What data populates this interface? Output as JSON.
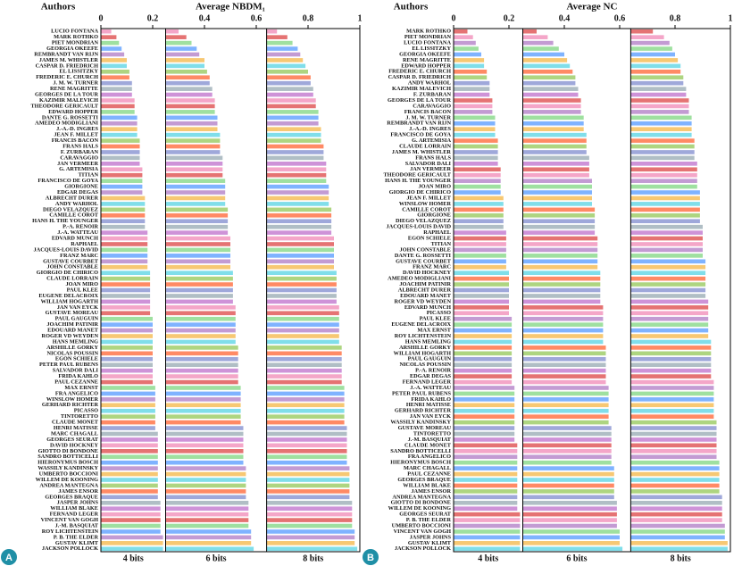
{
  "chart_data": [
    {
      "type": "bar",
      "panel_label": "A",
      "authors_label": "Authors",
      "title": "Average NBDM₁",
      "xlim": [
        0,
        1
      ],
      "xticks": [
        0,
        0.2,
        0.4,
        0.6,
        0.8,
        1
      ],
      "palette": [
        "#f4a6c8",
        "#e57373",
        "#9fe0a0",
        "#7fb3ff",
        "#c39bd3",
        "#f7c873",
        "#80deea",
        "#aed581",
        "#ff8a65",
        "#9fa8da",
        "#b0bec5",
        "#ce93d8"
      ],
      "categories": [
        "LUCIO FONTANA",
        "MARK ROTHKO",
        "PIET MONDRIAN",
        "GEORGIA OKEEFE",
        "REMBRANDT VAN RIJN",
        "JAMES M. WHISTLER",
        "CASPAR D. FRIEDRICH",
        "EL LISSITZKY",
        "FREDERIC E. CHURCH",
        "J. M. W. TURNER",
        "RENE MAGRITTE",
        "GEORGES DE LA TOUR",
        "KAZIMIR MALEVICH",
        "THEODORE GERICAULT",
        "EDWARD HOPPER",
        "DANTE G. ROSSETTI",
        "AMEDEO MODIGLIANI",
        "J.-A.-D. INGRES",
        "JEAN F. MILLET",
        "FRANCIS BACON",
        "FRANS HALS",
        "F. ZURBARAN",
        "CARAVAGGIO",
        "JAN VERMEER",
        "G. ARTEMISIA",
        "TITIAN",
        "FRANCISCO DE GOYA",
        "GIORGIONE",
        "EDGAR DEGAS",
        "ALBRECHT DURER",
        "ANDY WARHOL",
        "DIEGO VELAZQUEZ",
        "CAMILLE COROT",
        "HANS H. THE YOUNGER",
        "P.-A. RENOIR",
        "J.-A. WATTEAU",
        "EDVARD MUNCH",
        "RAPHAEL",
        "JACQUES-LOUIS DAVID",
        "FRANZ MARC",
        "GUSTAVE COURBET",
        "JOHN CONSTABLE",
        "GIORGIO DE CHIRICO",
        "CLAUDE LORRAIN",
        "JOAN MIRO",
        "PAUL KLEE",
        "EUGENE DELACROIX",
        "WILLIAM HOGARTH",
        "JAN VAN EYCK",
        "GUSTAVE MOREAU",
        "PAUL GAUGUIN",
        "JOACHIM PATINIR",
        "EDOUARD MANET",
        "ROGER VD WEYDEN",
        "HANS MEMLING",
        "ARSHILLE GORKY",
        "NICOLAS POUSSIN",
        "EGON SCHIELE",
        "PETER PAUL RUBENS",
        "SALVADOR DALI",
        "FRIDA KAHLO",
        "PAUL CEZANNE",
        "MAX ERNST",
        "FRA ANGELICO",
        "WINSLOW HOMER",
        "GERHARD RICHTER",
        "PICASSO",
        "TINTORETTO",
        "CLAUDE MONET",
        "HENRI MATISSE",
        "MARC CHAGALL",
        "GEORGES SEURAT",
        "DAVID HOCKNEY",
        "GIOTTO DI BONDONE",
        "SANDRO BOTTICELLI",
        "HIERONYMUS BOSCH",
        "WASSILY KANDINSKY",
        "UMBERTO BOCCIONI",
        "WILLEM DE KOONING",
        "ANDREA MANTEGNA",
        "JAMES ENSOR",
        "GEORGES BRAQUE",
        "JASPER JOHNS",
        "WILLIAM BLAKE",
        "FERNAND LEGER",
        "VINCENT VAN GOGH",
        "J.-M. BASQUIAT",
        "ROY LICHTENSTEIN",
        "P. B. THE ELDER",
        "GUSTAV KLIMT",
        "JACKSON POLLOCK"
      ],
      "series": [
        {
          "name": "4 bits",
          "values": [
            0.04,
            0.06,
            0.07,
            0.08,
            0.09,
            0.1,
            0.1,
            0.11,
            0.11,
            0.12,
            0.12,
            0.12,
            0.13,
            0.13,
            0.13,
            0.14,
            0.14,
            0.14,
            0.14,
            0.15,
            0.15,
            0.15,
            0.15,
            0.15,
            0.16,
            0.16,
            0.16,
            0.16,
            0.16,
            0.17,
            0.17,
            0.17,
            0.17,
            0.17,
            0.17,
            0.18,
            0.18,
            0.18,
            0.18,
            0.18,
            0.18,
            0.18,
            0.19,
            0.19,
            0.19,
            0.19,
            0.19,
            0.19,
            0.19,
            0.19,
            0.2,
            0.2,
            0.2,
            0.2,
            0.2,
            0.2,
            0.2,
            0.2,
            0.2,
            0.2,
            0.2,
            0.2,
            0.21,
            0.21,
            0.21,
            0.21,
            0.21,
            0.21,
            0.21,
            0.21,
            0.22,
            0.22,
            0.22,
            0.22,
            0.22,
            0.22,
            0.22,
            0.22,
            0.22,
            0.22,
            0.22,
            0.22,
            0.23,
            0.23,
            0.23,
            0.23,
            0.23,
            0.23,
            0.24,
            0.24,
            0.24
          ]
        },
        {
          "name": "6 bits",
          "values": [
            0.3,
            0.33,
            0.35,
            0.37,
            0.38,
            0.4,
            0.4,
            0.41,
            0.42,
            0.42,
            0.43,
            0.43,
            0.44,
            0.44,
            0.44,
            0.45,
            0.45,
            0.45,
            0.46,
            0.46,
            0.46,
            0.46,
            0.47,
            0.47,
            0.47,
            0.47,
            0.48,
            0.48,
            0.48,
            0.48,
            0.48,
            0.49,
            0.49,
            0.49,
            0.49,
            0.49,
            0.5,
            0.5,
            0.5,
            0.5,
            0.5,
            0.5,
            0.51,
            0.51,
            0.51,
            0.51,
            0.51,
            0.51,
            0.52,
            0.52,
            0.52,
            0.52,
            0.52,
            0.52,
            0.52,
            0.53,
            0.53,
            0.53,
            0.53,
            0.53,
            0.53,
            0.53,
            0.54,
            0.54,
            0.54,
            0.54,
            0.54,
            0.54,
            0.54,
            0.55,
            0.55,
            0.55,
            0.55,
            0.55,
            0.55,
            0.55,
            0.56,
            0.56,
            0.56,
            0.56,
            0.56,
            0.56,
            0.57,
            0.57,
            0.57,
            0.57,
            0.57,
            0.58,
            0.58,
            0.58,
            0.59
          ]
        },
        {
          "name": "8 bits",
          "values": [
            0.68,
            0.72,
            0.74,
            0.76,
            0.77,
            0.78,
            0.79,
            0.8,
            0.81,
            0.81,
            0.82,
            0.82,
            0.83,
            0.83,
            0.84,
            0.84,
            0.84,
            0.85,
            0.85,
            0.85,
            0.86,
            0.86,
            0.86,
            0.87,
            0.87,
            0.87,
            0.87,
            0.88,
            0.88,
            0.88,
            0.88,
            0.89,
            0.89,
            0.89,
            0.89,
            0.89,
            0.9,
            0.9,
            0.9,
            0.9,
            0.9,
            0.9,
            0.91,
            0.91,
            0.91,
            0.91,
            0.91,
            0.91,
            0.92,
            0.92,
            0.92,
            0.92,
            0.92,
            0.92,
            0.92,
            0.93,
            0.93,
            0.93,
            0.93,
            0.93,
            0.93,
            0.93,
            0.94,
            0.94,
            0.94,
            0.94,
            0.94,
            0.94,
            0.94,
            0.95,
            0.95,
            0.95,
            0.95,
            0.95,
            0.95,
            0.95,
            0.96,
            0.96,
            0.96,
            0.96,
            0.96,
            0.96,
            0.97,
            0.97,
            0.97,
            0.97,
            0.97,
            0.98,
            0.98,
            0.98,
            0.99
          ]
        }
      ]
    },
    {
      "type": "bar",
      "panel_label": "B",
      "authors_label": "Authors",
      "title": "Average NC",
      "xlim": [
        0,
        1
      ],
      "xticks": [
        0,
        0.2,
        0.4,
        0.6,
        0.8,
        1
      ],
      "palette": [
        "#e57373",
        "#f4a6c8",
        "#c39bd3",
        "#9fe0a0",
        "#7fb3ff",
        "#f7c873",
        "#80deea",
        "#ff8a65",
        "#aed581",
        "#9fa8da",
        "#b0bec5",
        "#ce93d8"
      ],
      "categories": [
        "MARK ROTHKO",
        "PIET MONDRIAN",
        "LUCIO FONTANA",
        "EL LISSITZKY",
        "GEORGIA OKEEFE",
        "RENE MAGRITTE",
        "EDWARD HOPPER",
        "FREDERIC E. CHURCH",
        "CASPAR D. FRIEDRICH",
        "ANDY WARHOL",
        "KAZIMIR MALEVICH",
        "F. ZURBARAN",
        "GEORGES DE LA TOUR",
        "CARAVAGGIO",
        "FRANCIS BACON",
        "J. M. W. TURNER",
        "REMBRANDT VAN RIJN",
        "J.-A.-D. INGRES",
        "FRANCISCO DE GOYA",
        "G. ARTEMISIA",
        "CLAUDE LORRAIN",
        "JAMES M. WHISTLER",
        "FRANS HALS",
        "SALVADOR DALI",
        "JAN VERMEER",
        "THEODORE GERICAULT",
        "HANS H. THE YOUNGER",
        "JOAN MIRO",
        "GIORGIO DE CHIRICO",
        "JEAN F. MILLET",
        "WINSLOW HOMER",
        "CAMILLE COROT",
        "GIORGIONE",
        "DIEGO VELAZQUEZ",
        "JACQUES-LOUIS DAVID",
        "RAPHAEL",
        "EGON SCHIELE",
        "TITIAN",
        "JOHN CONSTABLE",
        "DANTE G. ROSSETTI",
        "GUSTAVE COURBET",
        "FRANZ MARC",
        "DAVID HOCKNEY",
        "AMEDEO MODIGLIANI",
        "JOACHIM PATINIR",
        "ALBRECHT DURER",
        "EDOUARD MANET",
        "ROGER VD WEYDEN",
        "EDVARD MUNCH",
        "PICASSO",
        "PAUL KLEE",
        "EUGENE DELACROIX",
        "MAX ERNST",
        "ROY LICHTENSTEIN",
        "HANS MEMLING",
        "ARSHILLE GORKY",
        "WILLIAM HOGARTH",
        "PAUL GAUGUIN",
        "NICOLAS POUSSIN",
        "P.-A. RENOIR",
        "EDGAR DEGAS",
        "FERNAND LEGER",
        "J.-A. WATTEAU",
        "PETER PAUL RUBENS",
        "FRIDA KAHLO",
        "HENRI MATISSE",
        "GERHARD RICHTER",
        "JAN VAN EYCK",
        "WASSILY KANDINSKY",
        "GUSTAVE MOREAU",
        "TINTORETTO",
        "J.-M. BASQUIAT",
        "CLAUDE MONET",
        "SANDRO BOTTICELLI",
        "FRA ANGELICO",
        "HIERONYMUS BOSCH",
        "MARC CHAGALL",
        "PAUL CEZANNE",
        "GEORGES BRAQUE",
        "WILLIAM BLAKE",
        "JAMES ENSOR",
        "ANDREA MANTEGNA",
        "GIOTTO DI BONDONE",
        "WILLEM DE KOONING",
        "GEORGES SEURAT",
        "P. B. THE ELDER",
        "UMBERTO BOCCIONI",
        "VINCENT VAN GOGH",
        "JASPER JOHNS",
        "GUSTAV KLIMT",
        "JACKSON POLLOCK"
      ],
      "series": [
        {
          "name": "4 bits",
          "values": [
            0.05,
            0.07,
            0.08,
            0.09,
            0.1,
            0.11,
            0.11,
            0.12,
            0.12,
            0.13,
            0.13,
            0.13,
            0.14,
            0.14,
            0.14,
            0.15,
            0.15,
            0.15,
            0.15,
            0.16,
            0.16,
            0.16,
            0.16,
            0.16,
            0.17,
            0.17,
            0.17,
            0.17,
            0.17,
            0.18,
            0.18,
            0.18,
            0.18,
            0.18,
            0.18,
            0.19,
            0.19,
            0.19,
            0.19,
            0.19,
            0.19,
            0.19,
            0.2,
            0.2,
            0.2,
            0.2,
            0.2,
            0.2,
            0.2,
            0.2,
            0.21,
            0.21,
            0.21,
            0.21,
            0.21,
            0.21,
            0.21,
            0.21,
            0.21,
            0.21,
            0.21,
            0.21,
            0.22,
            0.22,
            0.22,
            0.22,
            0.22,
            0.22,
            0.22,
            0.22,
            0.22,
            0.22,
            0.23,
            0.23,
            0.23,
            0.23,
            0.23,
            0.23,
            0.23,
            0.23,
            0.23,
            0.23,
            0.23,
            0.23,
            0.24,
            0.24,
            0.24,
            0.24,
            0.24,
            0.24,
            0.24
          ]
        },
        {
          "name": "6 bits",
          "values": [
            0.3,
            0.34,
            0.36,
            0.38,
            0.4,
            0.41,
            0.42,
            0.43,
            0.44,
            0.44,
            0.45,
            0.45,
            0.46,
            0.46,
            0.46,
            0.47,
            0.47,
            0.47,
            0.48,
            0.48,
            0.48,
            0.48,
            0.49,
            0.49,
            0.49,
            0.49,
            0.5,
            0.5,
            0.5,
            0.5,
            0.5,
            0.51,
            0.51,
            0.51,
            0.51,
            0.51,
            0.52,
            0.52,
            0.52,
            0.52,
            0.52,
            0.52,
            0.53,
            0.53,
            0.53,
            0.53,
            0.53,
            0.53,
            0.54,
            0.54,
            0.54,
            0.54,
            0.54,
            0.54,
            0.54,
            0.55,
            0.55,
            0.55,
            0.55,
            0.55,
            0.55,
            0.55,
            0.56,
            0.56,
            0.56,
            0.56,
            0.56,
            0.56,
            0.56,
            0.57,
            0.57,
            0.57,
            0.57,
            0.57,
            0.57,
            0.57,
            0.58,
            0.58,
            0.58,
            0.58,
            0.58,
            0.58,
            0.59,
            0.59,
            0.59,
            0.59,
            0.59,
            0.6,
            0.6,
            0.6,
            0.61
          ]
        },
        {
          "name": "8 bits",
          "values": [
            0.72,
            0.76,
            0.78,
            0.79,
            0.8,
            0.81,
            0.82,
            0.82,
            0.83,
            0.83,
            0.84,
            0.84,
            0.85,
            0.85,
            0.85,
            0.86,
            0.86,
            0.86,
            0.86,
            0.87,
            0.87,
            0.87,
            0.87,
            0.88,
            0.88,
            0.88,
            0.88,
            0.88,
            0.89,
            0.89,
            0.89,
            0.89,
            0.89,
            0.89,
            0.9,
            0.9,
            0.9,
            0.9,
            0.9,
            0.9,
            0.91,
            0.91,
            0.91,
            0.91,
            0.91,
            0.91,
            0.91,
            0.92,
            0.92,
            0.92,
            0.92,
            0.92,
            0.92,
            0.92,
            0.93,
            0.93,
            0.93,
            0.93,
            0.93,
            0.93,
            0.93,
            0.94,
            0.94,
            0.94,
            0.94,
            0.94,
            0.94,
            0.94,
            0.95,
            0.95,
            0.95,
            0.95,
            0.95,
            0.95,
            0.95,
            0.96,
            0.96,
            0.96,
            0.96,
            0.96,
            0.96,
            0.97,
            0.97,
            0.97,
            0.97,
            0.97,
            0.98,
            0.98,
            0.98,
            0.99,
            0.99
          ]
        }
      ]
    }
  ]
}
